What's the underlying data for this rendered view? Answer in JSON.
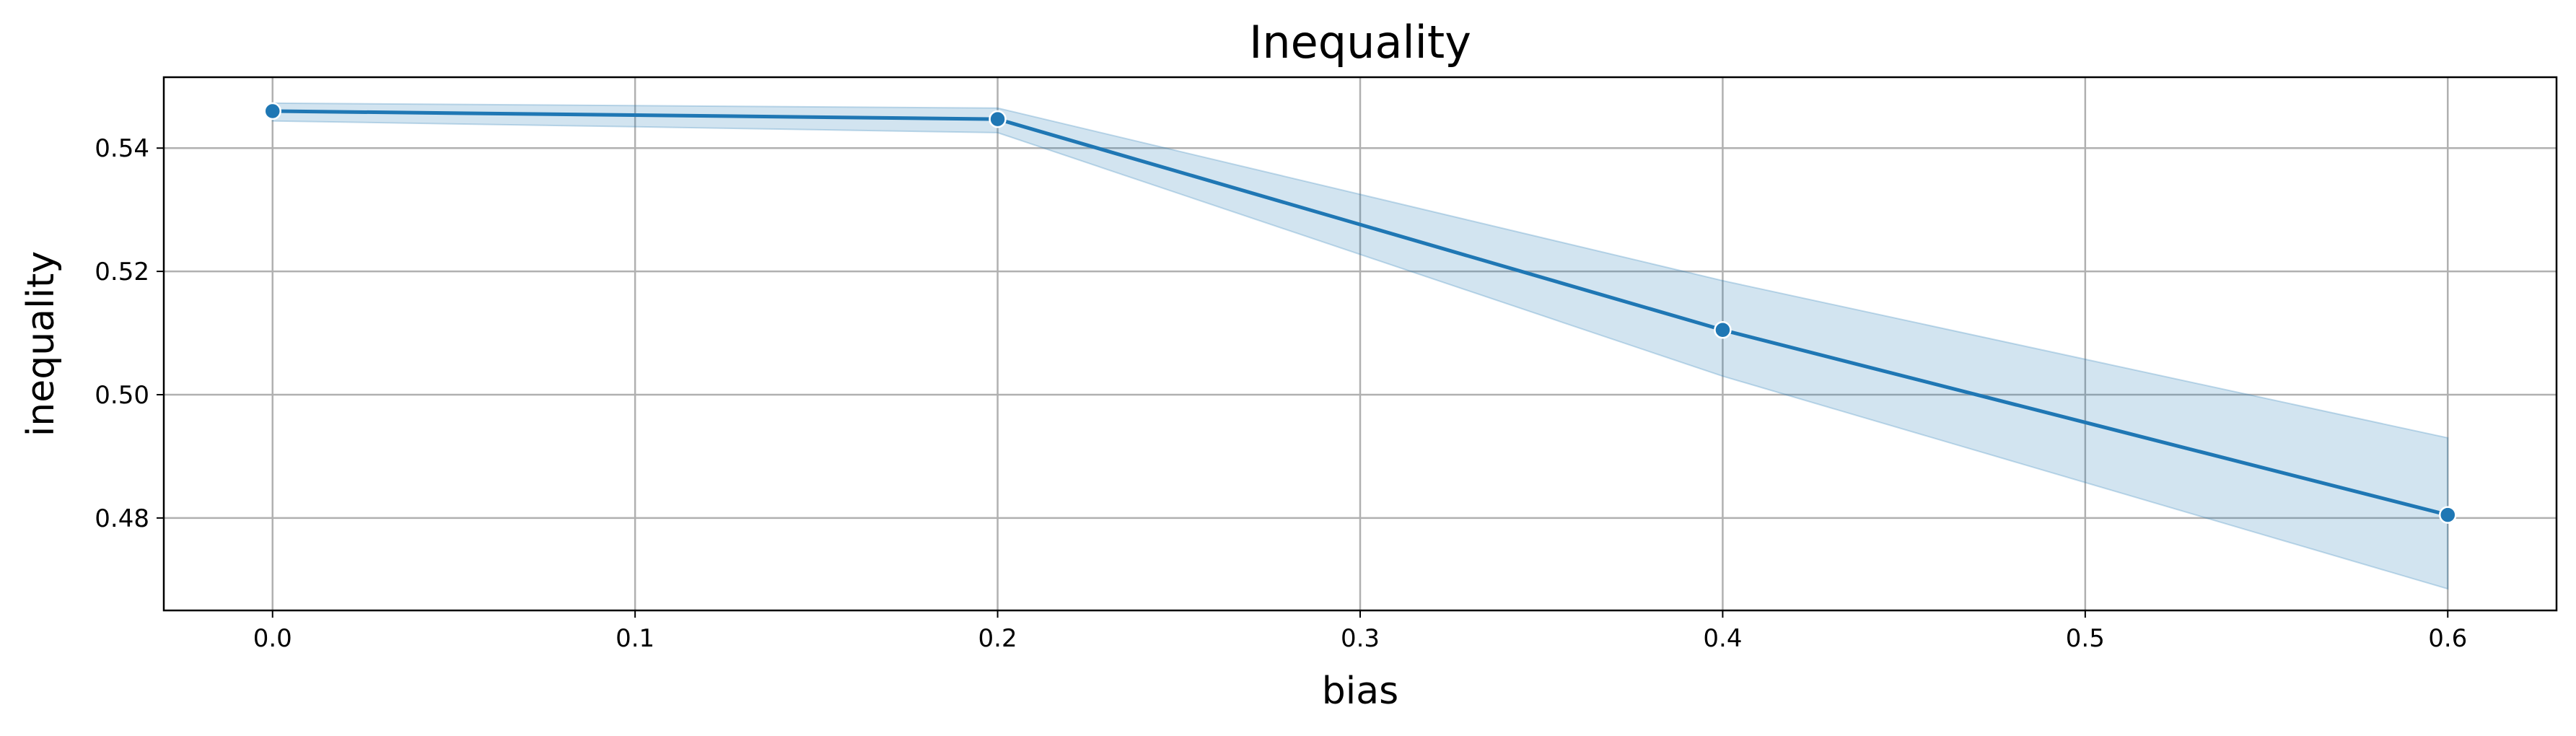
{
  "chart_data": {
    "type": "line",
    "title": "Inequality",
    "xlabel": "bias",
    "ylabel": "inequality",
    "xlim": [
      -0.03,
      0.63
    ],
    "ylim": [
      0.465,
      0.5515
    ],
    "x_ticks": [
      0.0,
      0.1,
      0.2,
      0.3,
      0.4,
      0.5,
      0.6
    ],
    "x_tick_labels": [
      "0.0",
      "0.1",
      "0.2",
      "0.3",
      "0.4",
      "0.5",
      "0.6"
    ],
    "y_ticks": [
      0.48,
      0.5,
      0.52,
      0.54
    ],
    "y_tick_labels": [
      "0.48",
      "0.50",
      "0.52",
      "0.54"
    ],
    "grid": true,
    "series": [
      {
        "x": [
          0.0,
          0.2,
          0.4,
          0.6
        ],
        "y": [
          0.546,
          0.5447,
          0.5105,
          0.4805
        ],
        "ci_lower": [
          0.5444,
          0.5425,
          0.503,
          0.4685
        ],
        "ci_upper": [
          0.5473,
          0.5465,
          0.5185,
          0.493
        ],
        "color": "#1f77b4",
        "band_color": "#1f77b4",
        "marker": "circle"
      }
    ]
  }
}
